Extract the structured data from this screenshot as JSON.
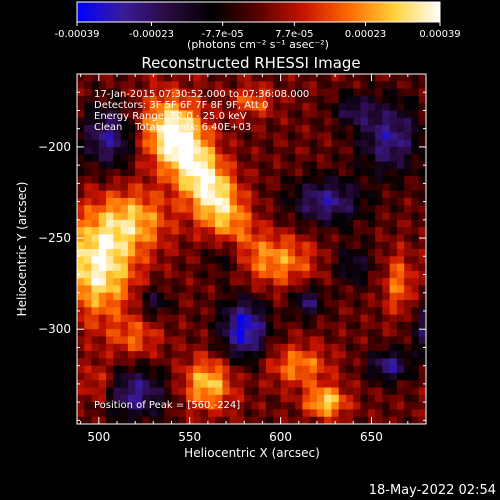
{
  "colorbar": {
    "ticks": [
      "-0.00039",
      "-0.00023",
      "-7.7e-05",
      "7.7e-05",
      "0.00023",
      "0.00039"
    ],
    "tick_values": [
      -0.00039,
      -0.00023,
      -7.7e-05,
      7.7e-05,
      0.00023,
      0.00039
    ],
    "range": [
      -0.00039,
      0.00039
    ],
    "units_label": "(photons cm⁻² s⁻¹ asec⁻²)",
    "colors": [
      "#0000ff",
      "#3a1b9a",
      "#2a0a40",
      "#000000",
      "#5a0000",
      "#c81400",
      "#ff6a00",
      "#ffd23a",
      "#ffffff"
    ]
  },
  "plot": {
    "title": "Reconstructed RHESSI Image",
    "info_lines": [
      "17-Jan-2015 07:30:52.000 to 07:36:08.000",
      "Detectors: 3F 5F 6F 7F 8F 9F, Att 0",
      "Energy Range: 12.0 - 25.0 keV",
      "Clean    Total counts: 6.40E+03"
    ],
    "peak_label": "Position of Peak = [560,-224]"
  },
  "chart_data": {
    "type": "heatmap",
    "title": "Reconstructed RHESSI Image",
    "xlabel": "Heliocentric X (arcsec)",
    "ylabel": "Heliocentric Y (arcsec)",
    "xlim": [
      488,
      680
    ],
    "ylim": [
      -352,
      -160
    ],
    "xticks": [
      500,
      550,
      600,
      650
    ],
    "yticks": [
      -200,
      -250,
      -300
    ],
    "colorbar_range": [
      -0.00039,
      0.00039
    ],
    "peak_position": [
      560,
      -224
    ],
    "time_range": [
      "17-Jan-2015 07:30:52.000",
      "17-Jan-2015 07:36:08.000"
    ],
    "detectors": [
      "3F",
      "5F",
      "6F",
      "7F",
      "8F",
      "9F"
    ],
    "attenuator": 0,
    "energy_range_kev": [
      12.0,
      25.0
    ],
    "method": "Clean",
    "total_counts": 6400,
    "sources": [
      {
        "x": 560,
        "y": -222,
        "sx": 10,
        "sy": 26,
        "rot": -30,
        "amp": 1.0
      },
      {
        "x": 540,
        "y": -192,
        "sx": 12,
        "sy": 14,
        "rot": 0,
        "amp": 0.75
      },
      {
        "x": 500,
        "y": -265,
        "sx": 14,
        "sy": 20,
        "rot": 0,
        "amp": 0.95
      },
      {
        "x": 520,
        "y": -240,
        "sx": 14,
        "sy": 12,
        "rot": 0,
        "amp": 0.6
      },
      {
        "x": 560,
        "y": -330,
        "sx": 10,
        "sy": 10,
        "rot": 0,
        "amp": 0.75
      },
      {
        "x": 600,
        "y": -262,
        "sx": 14,
        "sy": 10,
        "rot": 0,
        "amp": 0.55
      },
      {
        "x": 610,
        "y": -320,
        "sx": 12,
        "sy": 8,
        "rot": 0,
        "amp": 0.55
      },
      {
        "x": 625,
        "y": -340,
        "sx": 8,
        "sy": 6,
        "rot": 0,
        "amp": 0.8
      },
      {
        "x": 665,
        "y": -275,
        "sx": 6,
        "sy": 12,
        "rot": 0,
        "amp": 0.5
      },
      {
        "x": 585,
        "y": -175,
        "sx": 8,
        "sy": 6,
        "rot": 0,
        "amp": 0.45
      },
      {
        "x": 520,
        "y": -305,
        "sx": 10,
        "sy": 8,
        "rot": 0,
        "amp": 0.4
      },
      {
        "x": 580,
        "y": -300,
        "sx": 9,
        "sy": 12,
        "rot": 0,
        "amp": -0.95
      },
      {
        "x": 625,
        "y": -230,
        "sx": 14,
        "sy": 9,
        "rot": 0,
        "amp": -0.7
      },
      {
        "x": 660,
        "y": -195,
        "sx": 12,
        "sy": 14,
        "rot": 0,
        "amp": -0.7
      },
      {
        "x": 660,
        "y": -320,
        "sx": 8,
        "sy": 6,
        "rot": 0,
        "amp": -0.7
      },
      {
        "x": 520,
        "y": -335,
        "sx": 12,
        "sy": 10,
        "rot": 0,
        "amp": -0.7
      },
      {
        "x": 505,
        "y": -195,
        "sx": 10,
        "sy": 12,
        "rot": 0,
        "amp": -0.7
      },
      {
        "x": 570,
        "y": -260,
        "sx": 8,
        "sy": 8,
        "rot": 0,
        "amp": -0.4
      },
      {
        "x": 615,
        "y": -285,
        "sx": 6,
        "sy": 6,
        "rot": 0,
        "amp": -0.6
      },
      {
        "x": 530,
        "y": -285,
        "sx": 6,
        "sy": 6,
        "rot": 0,
        "amp": -0.45
      },
      {
        "x": 640,
        "y": -180,
        "sx": 8,
        "sy": 6,
        "rot": 0,
        "amp": -0.45
      },
      {
        "x": 640,
        "y": -265,
        "sx": 8,
        "sy": 8,
        "rot": 0,
        "amp": -0.4
      },
      {
        "x": 500,
        "y": -330,
        "sx": 6,
        "sy": 8,
        "rot": 0,
        "amp": 0.4
      },
      {
        "x": 680,
        "y": -300,
        "sx": 6,
        "sy": 10,
        "rot": 0,
        "amp": -0.5
      }
    ]
  },
  "footer": {
    "timestamp": "18-May-2022 02:54"
  }
}
